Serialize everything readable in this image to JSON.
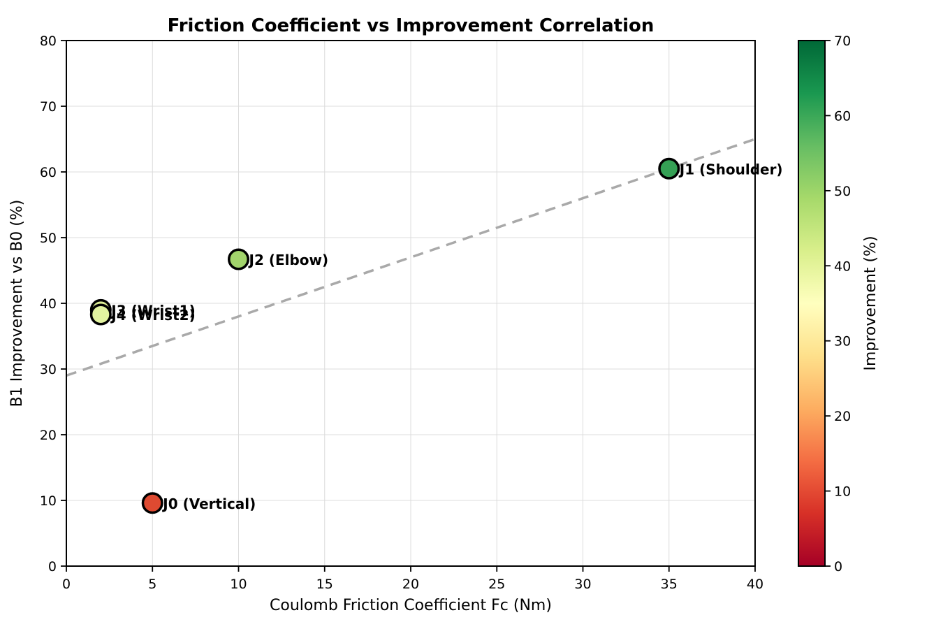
{
  "chart_data": {
    "type": "scatter",
    "title": "Friction Coefficient vs Improvement Correlation",
    "xlabel": "Coulomb Friction Coefficient Fc (Nm)",
    "ylabel": "B1 Improvement vs B0 (%)",
    "xlim": [
      0,
      40
    ],
    "ylim": [
      0,
      80
    ],
    "xticks": [
      0,
      5,
      10,
      15,
      20,
      25,
      30,
      35,
      40
    ],
    "yticks": [
      0,
      10,
      20,
      30,
      40,
      50,
      60,
      70,
      80
    ],
    "grid": true,
    "grid_color": "#dcdcdc",
    "marker_edge_color": "#000000",
    "points": [
      {
        "label": "J0 (Vertical)",
        "x": 5,
        "y": 9.6,
        "improvement": 9.6,
        "color": "#de4a31"
      },
      {
        "label": "J1 (Shoulder)",
        "x": 35,
        "y": 60.5,
        "improvement": 60.5,
        "color": "#35a055"
      },
      {
        "label": "J2 (Elbow)",
        "x": 10,
        "y": 46.7,
        "improvement": 46.7,
        "color": "#a2d46c"
      },
      {
        "label": "J3 (Wrist1)",
        "x": 2,
        "y": 39.0,
        "improvement": 39.0,
        "color": "#dff096"
      },
      {
        "label": "J4 (Wrist2)",
        "x": 2,
        "y": 38.3,
        "improvement": 38.3,
        "color": "#e2f3a0"
      }
    ],
    "trend_line": {
      "x": [
        0,
        40
      ],
      "y": [
        29,
        65
      ],
      "style": "dashed",
      "color": "#a9a9a9"
    },
    "colorbar": {
      "label": "Improvement (%)",
      "min": 0,
      "max": 70,
      "ticks": [
        0,
        10,
        20,
        30,
        40,
        50,
        60,
        70
      ],
      "colormap": "RdYlGn",
      "gradient_stops": [
        {
          "t": 0.0,
          "color": "#a50026"
        },
        {
          "t": 0.1,
          "color": "#d73027"
        },
        {
          "t": 0.2,
          "color": "#f46d43"
        },
        {
          "t": 0.3,
          "color": "#fdae61"
        },
        {
          "t": 0.4,
          "color": "#fee08b"
        },
        {
          "t": 0.5,
          "color": "#ffffbf"
        },
        {
          "t": 0.6,
          "color": "#d9ef8b"
        },
        {
          "t": 0.7,
          "color": "#a6d96a"
        },
        {
          "t": 0.8,
          "color": "#66bd63"
        },
        {
          "t": 0.9,
          "color": "#1a9850"
        },
        {
          "t": 1.0,
          "color": "#006837"
        }
      ]
    }
  }
}
